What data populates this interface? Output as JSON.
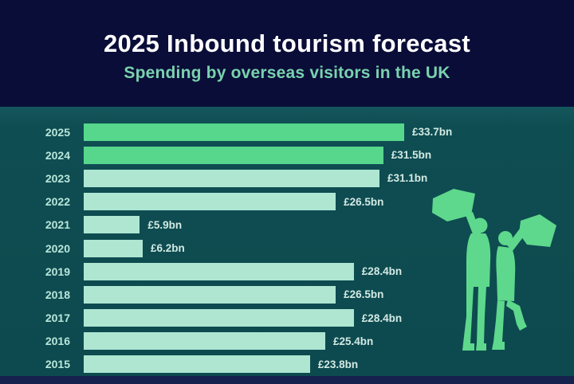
{
  "header": {
    "title": "2025 Inbound tourism forecast",
    "subtitle": "Spending by overseas visitors in the UK"
  },
  "chart_data": {
    "type": "bar",
    "orientation": "horizontal",
    "title": "2025 Inbound tourism forecast",
    "subtitle": "Spending by overseas visitors in the UK",
    "categories": [
      "2025",
      "2024",
      "2023",
      "2022",
      "2021",
      "2020",
      "2019",
      "2018",
      "2017",
      "2016",
      "2015"
    ],
    "values": [
      33.7,
      31.5,
      31.1,
      26.5,
      5.9,
      6.2,
      28.4,
      26.5,
      28.4,
      25.4,
      23.8
    ],
    "value_labels": [
      "£33.7bn",
      "£31.5bn",
      "£31.1bn",
      "£26.5bn",
      "£5.9bn",
      "£6.2bn",
      "£28.4bn",
      "£26.5bn",
      "£28.4bn",
      "£25.4bn",
      "£23.8bn"
    ],
    "unit": "£bn",
    "xlim": [
      0,
      35
    ],
    "highlighted_categories": [
      "2025",
      "2024"
    ],
    "grid": false,
    "legend": false,
    "value_labels_position": "end-of-bar"
  },
  "colors": {
    "header_background": "#0a0d38",
    "chart_background": "#0e4d52",
    "bottom_strip": "#16214d",
    "bar_highlight": "#56d78c",
    "bar_normal": "#aee6d2",
    "year_label": "#b9e6da",
    "value_label": "#d3eae4",
    "title": "#ffffff",
    "subtitle": "#79d2ae",
    "illustration": "#5ed88c"
  },
  "illustration": {
    "name": "celebrating-tourists-holding-maps"
  }
}
